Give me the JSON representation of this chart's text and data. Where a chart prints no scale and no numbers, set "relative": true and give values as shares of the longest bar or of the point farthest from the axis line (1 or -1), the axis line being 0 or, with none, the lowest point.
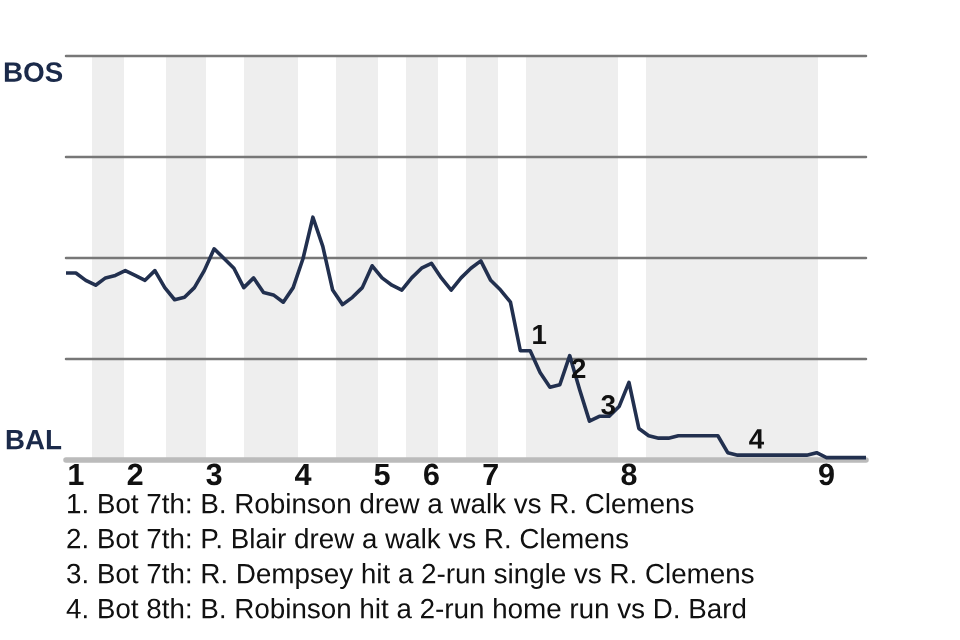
{
  "chart_data": {
    "type": "line",
    "relative": true,
    "categories": [
      null,
      "1",
      null,
      null,
      null,
      null,
      null,
      "2",
      null,
      null,
      null,
      null,
      null,
      null,
      null,
      "3",
      null,
      null,
      null,
      null,
      null,
      null,
      null,
      null,
      "4",
      null,
      null,
      null,
      null,
      null,
      null,
      null,
      "5",
      null,
      null,
      null,
      null,
      "6",
      null,
      null,
      null,
      null,
      null,
      "7",
      null,
      null,
      null,
      null,
      null,
      null,
      null,
      null,
      null,
      null,
      null,
      null,
      null,
      "8",
      null,
      null,
      null,
      null,
      null,
      null,
      null,
      null,
      null,
      null,
      null,
      null,
      null,
      null,
      null,
      null,
      null,
      null,
      null,
      "9",
      null,
      null,
      null,
      null
    ],
    "series": [
      {
        "color": "#22304f",
        "values": [
          0.77,
          0.77,
          0.74,
          0.72,
          0.75,
          0.76,
          0.78,
          0.76,
          0.74,
          0.78,
          0.71,
          0.66,
          0.67,
          0.71,
          0.78,
          0.87,
          0.83,
          0.79,
          0.71,
          0.75,
          0.69,
          0.68,
          0.65,
          0.71,
          0.83,
          1,
          0.88,
          0.7,
          0.64,
          0.67,
          0.71,
          0.8,
          0.75,
          0.72,
          0.7,
          0.75,
          0.79,
          0.81,
          0.75,
          0.7,
          0.75,
          0.79,
          0.82,
          0.74,
          0.7,
          0.65,
          0.45,
          0.45,
          0.36,
          0.3,
          0.31,
          0.43,
          0.29,
          0.16,
          0.18,
          0.18,
          0.22,
          0.32,
          0.13,
          0.1,
          0.09,
          0.09,
          0.1,
          0.1,
          0.1,
          0.1,
          0.1,
          0.03,
          0.02,
          0.02,
          0.02,
          0.02,
          0.02,
          0.02,
          0.02,
          0.02,
          0.03,
          0.01,
          0.01,
          0.01,
          0.01,
          0.01
        ]
      }
    ],
    "ref_lines": [
      {
        "axis": "y",
        "value": 0.416,
        "color": "#777777"
      },
      {
        "axis": "y",
        "value": 0.832,
        "color": "#777777"
      },
      {
        "axis": "y",
        "value": 1.248,
        "color": "#777777"
      },
      {
        "axis": "y",
        "value": 1.664,
        "label": "BOS",
        "color": "#777777"
      }
    ],
    "marker": "none",
    "line_style": "solid",
    "annotations": [
      {
        "text": "1",
        "y": 0.45
      },
      {
        "text": "2",
        "y": 0.31
      },
      {
        "text": "3",
        "y": 0.16
      },
      {
        "text": "4",
        "y": 0.02
      },
      "BAL",
      "1. Bot 7th: B. Robinson drew a walk vs R. Clemens",
      "2. Bot 7th: P. Blair drew a walk vs R. Clemens",
      "3. Bot 7th: R. Dempsey hit a 2-run single vs R. Clemens",
      "4. Bot 8th: B. Robinson hit a 2-run home run vs D. Bard"
    ]
  }
}
